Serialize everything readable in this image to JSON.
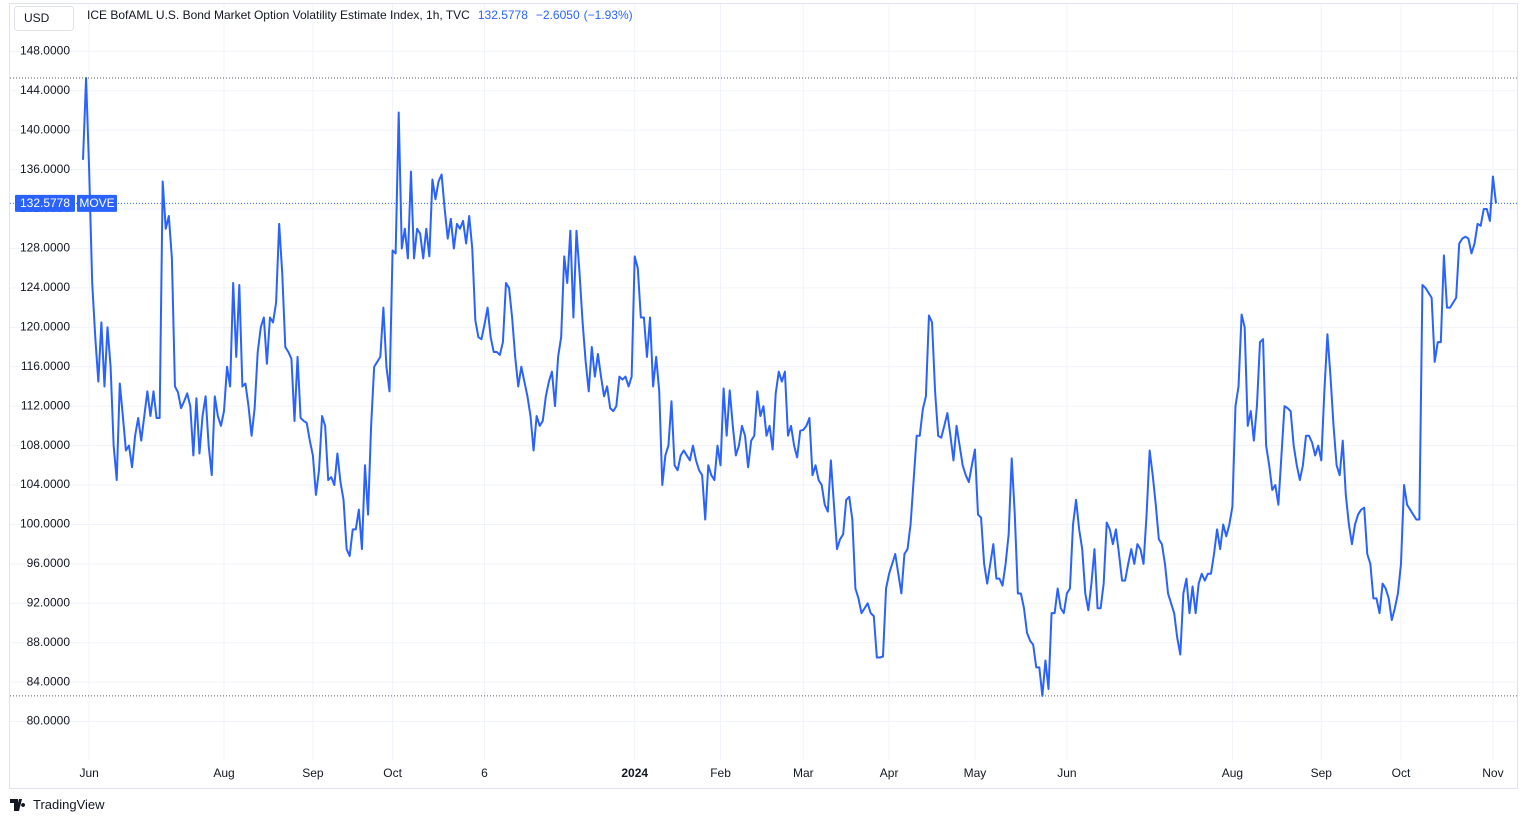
{
  "currency": "USD",
  "header": {
    "title": "ICE BofAML U.S. Bond Market Option Volatility Estimate Index, 1h, TVC",
    "change": "−2.6050",
    "change_percent": "(−1.93%)"
  },
  "branding": "TradingView",
  "chart_data": {
    "type": "line",
    "grid": true,
    "series": [
      {
        "name": "MOVE",
        "color": "#2962ff",
        "values": [
          137,
          145.3,
          136,
          124.5,
          119,
          114.5,
          120.5,
          114,
          120,
          116,
          108,
          104.5,
          114.3,
          111,
          107.5,
          108,
          105.8,
          109,
          110.8,
          108.5,
          111,
          113.5,
          111,
          113.5,
          110.8,
          110.8,
          134.8,
          130,
          131.3,
          127,
          114,
          113.4,
          111.8,
          112.5,
          113.3,
          112,
          107,
          112.8,
          107.2,
          111,
          113,
          108,
          105,
          113,
          111,
          110,
          111.5,
          116,
          114,
          124.5,
          117,
          124.3,
          114,
          114.3,
          112,
          109,
          111.8,
          117.5,
          120,
          121,
          116.3,
          121,
          120.5,
          122.5,
          130.5,
          125.5,
          118,
          117.5,
          116.8,
          110.5,
          117,
          110.8,
          110.5,
          110.3,
          108.5,
          107,
          103,
          105.5,
          111,
          110,
          104.5,
          104.8,
          104,
          107.2,
          104.3,
          102.5,
          97.5,
          96.8,
          99.5,
          99.5,
          101.5,
          97.5,
          106,
          101,
          110,
          116,
          116.5,
          117,
          122,
          116,
          113.5,
          127.8,
          127.5,
          141.8,
          128,
          130,
          127,
          135.8,
          127,
          130,
          129.5,
          127,
          130,
          127.2,
          135,
          133,
          134.8,
          135.5,
          132,
          129,
          131,
          128,
          130.5,
          130,
          130.8,
          128.5,
          131.3,
          128,
          120.7,
          119,
          118.8,
          120.3,
          122,
          119,
          117.5,
          117.5,
          117.2,
          118.5,
          124.5,
          124,
          121,
          117,
          114,
          116,
          114.5,
          113,
          111,
          107.5,
          111,
          110,
          110.5,
          113,
          114.5,
          115.5,
          112,
          117,
          119,
          127.2,
          124.5,
          129.8,
          121,
          129.8,
          125.5,
          120.5,
          116.5,
          113.5,
          118,
          115,
          117.3,
          115,
          113,
          114,
          111.8,
          111.5,
          112,
          115,
          114.7,
          115,
          114,
          115,
          127.2,
          126,
          121,
          121,
          117,
          121,
          114,
          117,
          113.5,
          104,
          107,
          108,
          112.5,
          106,
          105.5,
          107,
          107.5,
          107,
          106.5,
          108,
          106.5,
          105.5,
          105,
          100.5,
          106,
          105,
          104.5,
          108,
          106,
          113.8,
          109,
          113.6,
          110,
          107,
          108,
          110,
          109,
          105.8,
          108.5,
          109,
          113.5,
          111,
          112,
          109,
          110,
          107.6,
          113.3,
          115.5,
          114.5,
          115.5,
          109,
          110,
          108,
          106.8,
          109.5,
          109.6,
          110,
          110.8,
          105,
          106,
          104.5,
          104,
          102,
          101.3,
          106.5,
          102,
          97.5,
          98.5,
          99,
          102.5,
          102.8,
          100.5,
          93.5,
          92.5,
          91,
          91.5,
          92,
          91,
          90.7,
          86.5,
          86.5,
          86.6,
          93.5,
          95,
          96,
          97,
          95,
          93,
          97,
          97.5,
          100,
          104.5,
          109,
          109,
          111.7,
          113,
          121.2,
          120.5,
          113.5,
          109,
          108.8,
          110,
          111.3,
          109,
          106.5,
          110,
          108,
          106,
          105,
          104.3,
          106,
          107.6,
          101,
          100.7,
          96,
          94,
          96,
          98,
          94.5,
          94.5,
          93.8,
          96,
          99,
          106.7,
          101,
          93,
          93,
          91.5,
          89,
          88.2,
          87.8,
          85.5,
          85.5,
          82.6,
          86.2,
          83.3,
          91,
          91,
          93.5,
          91.5,
          91,
          93,
          93.5,
          100,
          102.5,
          99.5,
          97.5,
          93,
          91.3,
          94,
          97.5,
          91.5,
          91.5,
          94,
          100.2,
          99.5,
          98,
          99.5,
          97,
          94.3,
          94.3,
          96,
          97.5,
          96,
          98,
          97.5,
          96,
          101,
          107.5,
          105,
          102,
          98.5,
          98,
          96,
          93,
          92,
          91,
          88.5,
          86.8,
          93,
          94.5,
          91,
          93.7,
          91,
          94,
          95,
          94.3,
          95,
          95,
          97,
          99.5,
          97.5,
          100,
          98.8,
          100,
          101.8,
          112,
          114,
          121.3,
          120,
          110,
          111.5,
          108.5,
          112,
          118.5,
          118.8,
          108,
          106,
          103.5,
          104,
          102,
          107,
          112,
          111.8,
          111.5,
          108,
          106,
          104.5,
          106,
          109,
          109,
          108.3,
          107,
          108,
          106.5,
          113.5,
          119.3,
          115,
          110,
          106,
          105,
          108.5,
          103,
          100,
          98,
          100,
          101,
          101.5,
          101.7,
          97,
          96,
          92.5,
          92.5,
          91,
          94,
          93.5,
          92.5,
          90.3,
          91.5,
          93,
          96,
          104,
          102,
          101.5,
          101,
          100.5,
          100.5,
          124.3,
          124,
          123.5,
          123,
          116.5,
          118.5,
          118.5,
          127.3,
          122,
          122,
          122.5,
          123,
          128.5,
          129,
          129.2,
          129,
          127.5,
          128.5,
          130.5,
          130.3,
          132,
          132,
          130.8,
          135.3,
          132.5778
        ]
      }
    ],
    "categories": [
      null,
      null,
      "Jun",
      null,
      null,
      null,
      null,
      null,
      null,
      null,
      null,
      null,
      null,
      null,
      null,
      null,
      null,
      null,
      null,
      null,
      null,
      null,
      null,
      null,
      null,
      null,
      null,
      null,
      null,
      null,
      null,
      null,
      null,
      null,
      null,
      null,
      null,
      null,
      null,
      null,
      null,
      null,
      null,
      null,
      null,
      null,
      "Aug",
      null,
      null,
      null,
      null,
      null,
      null,
      null,
      null,
      null,
      null,
      null,
      null,
      null,
      null,
      null,
      null,
      null,
      null,
      null,
      null,
      null,
      null,
      null,
      null,
      null,
      null,
      null,
      null,
      "Sep",
      null,
      null,
      null,
      null,
      null,
      null,
      null,
      null,
      null,
      null,
      null,
      null,
      null,
      null,
      null,
      null,
      null,
      null,
      null,
      null,
      null,
      null,
      null,
      null,
      null,
      "Oct",
      null,
      null,
      null,
      null,
      null,
      null,
      null,
      null,
      null,
      null,
      null,
      null,
      null,
      null,
      null,
      null,
      null,
      null,
      null,
      null,
      null,
      null,
      null,
      null,
      null,
      null,
      null,
      null,
      null,
      "6",
      null,
      null,
      null,
      null,
      null,
      null,
      null,
      null,
      null,
      null,
      null,
      null,
      null,
      null,
      null,
      null,
      null,
      null,
      null,
      null,
      null,
      null,
      null,
      null,
      null,
      null,
      null,
      null,
      null,
      null,
      null,
      null,
      null,
      null,
      null,
      null,
      null,
      null,
      null,
      null,
      null,
      null,
      null,
      null,
      null,
      null,
      null,
      null,
      "2024",
      null,
      null,
      null,
      null,
      null,
      null,
      null,
      null,
      null,
      null,
      null,
      null,
      null,
      null,
      null,
      null,
      null,
      null,
      null,
      null,
      null,
      null,
      null,
      null,
      null,
      null,
      null,
      "Feb",
      null,
      null,
      null,
      null,
      null,
      null,
      null,
      null,
      null,
      null,
      null,
      null,
      null,
      null,
      null,
      null,
      null,
      null,
      null,
      null,
      null,
      null,
      null,
      null,
      null,
      null,
      "Mar",
      null,
      null,
      null,
      null,
      null,
      null,
      null,
      null,
      null,
      null,
      null,
      null,
      null,
      null,
      null,
      null,
      null,
      null,
      null,
      null,
      null,
      null,
      null,
      null,
      null,
      null,
      null,
      "Apr",
      null,
      null,
      null,
      null,
      null,
      null,
      null,
      null,
      null,
      null,
      null,
      null,
      null,
      null,
      null,
      null,
      null,
      null,
      null,
      null,
      null,
      null,
      null,
      null,
      null,
      null,
      null,
      "May",
      null,
      null,
      null,
      null,
      null,
      null,
      null,
      null,
      null,
      null,
      null,
      null,
      null,
      null,
      null,
      null,
      null,
      null,
      null,
      null,
      null,
      null,
      null,
      null,
      null,
      null,
      null,
      null,
      null,
      "Jun",
      null,
      null,
      null,
      null,
      null,
      null,
      null,
      null,
      null,
      null,
      null,
      null,
      null,
      null,
      null,
      null,
      null,
      null,
      null,
      null,
      null,
      null,
      null,
      null,
      null,
      null,
      null,
      null,
      null,
      null,
      null,
      null,
      null,
      null,
      null,
      null,
      null,
      null,
      null,
      null,
      null,
      null,
      null,
      null,
      null,
      null,
      null,
      null,
      null,
      null,
      null,
      null,
      null,
      "Aug",
      null,
      null,
      null,
      null,
      null,
      null,
      null,
      null,
      null,
      null,
      null,
      null,
      null,
      null,
      null,
      null,
      null,
      null,
      null,
      null,
      null,
      null,
      null,
      null,
      null,
      null,
      null,
      null,
      "Sep",
      null,
      null,
      null,
      null,
      null,
      null,
      null,
      null,
      null,
      null,
      null,
      null,
      null,
      null,
      null,
      null,
      null,
      null,
      null,
      null,
      null,
      null,
      null,
      null,
      null,
      "Oct",
      null,
      null,
      null,
      null,
      null,
      null,
      null,
      null,
      null,
      null,
      null,
      null,
      null,
      null,
      null,
      null,
      null,
      null,
      null,
      null,
      null,
      null,
      null,
      null,
      null,
      null,
      null,
      null,
      null,
      "Nov",
      null
    ],
    "ylim": [
      76.1,
      152.4
    ],
    "yticks": [
      {
        "value": 80,
        "label": "80.0000"
      },
      {
        "value": 84,
        "label": "84.0000"
      },
      {
        "value": 88,
        "label": "88.0000"
      },
      {
        "value": 92,
        "label": "92.0000"
      },
      {
        "value": 96,
        "label": "96.0000"
      },
      {
        "value": 100,
        "label": "100.0000"
      },
      {
        "value": 104,
        "label": "104.0000"
      },
      {
        "value": 108,
        "label": "108.0000"
      },
      {
        "value": 112,
        "label": "112.0000"
      },
      {
        "value": 116,
        "label": "116.0000"
      },
      {
        "value": 120,
        "label": "120.0000"
      },
      {
        "value": 124,
        "label": "124.0000"
      },
      {
        "value": 128,
        "label": "128.0000"
      },
      {
        "value": 132,
        "label": "132.0000"
      },
      {
        "value": 136,
        "label": "136.0000"
      },
      {
        "value": 140,
        "label": "140.0000"
      },
      {
        "value": 144,
        "label": "144.0000"
      },
      {
        "value": 148,
        "label": "148.0000"
      }
    ]
  }
}
